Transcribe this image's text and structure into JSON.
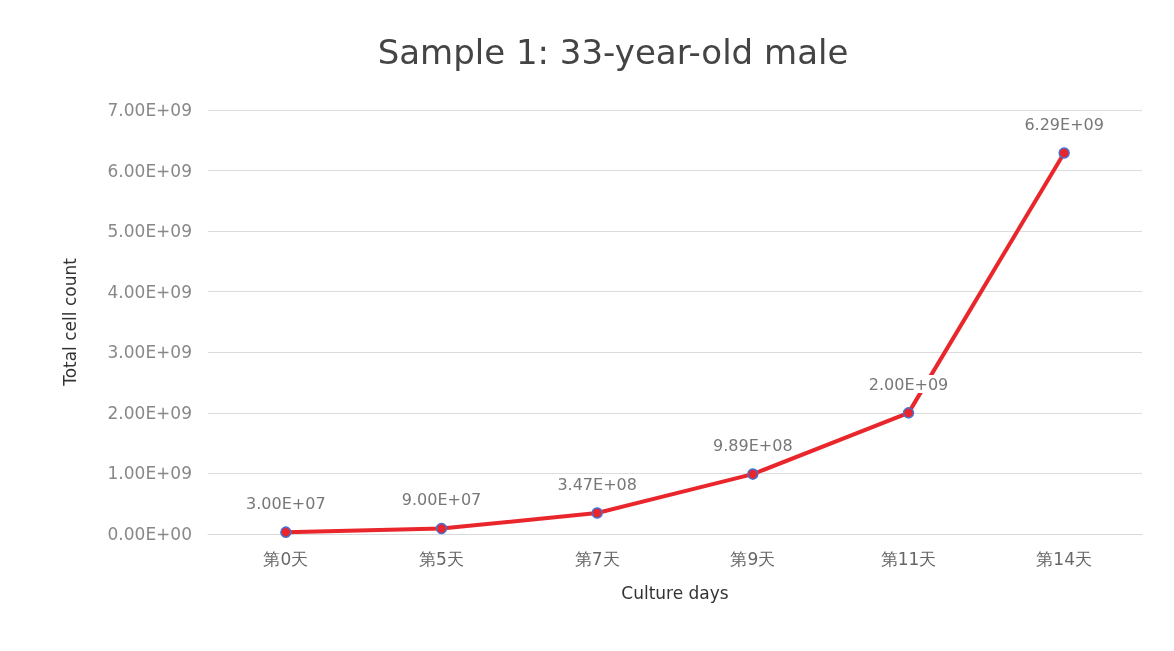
{
  "chart_data": {
    "type": "line",
    "title": "Sample 1: 33-year-old male",
    "xlabel": "Culture days",
    "ylabel": "Total cell count",
    "categories": [
      "第0天",
      "第5天",
      "第7天",
      "第9天",
      "第11天",
      "第14天"
    ],
    "series": [
      {
        "color": "#e8262b",
        "values": [
          30000000,
          90000000,
          347000000,
          989000000,
          2000000000,
          6290000000
        ],
        "value_labels": [
          "3.00E+07",
          "9.00E+07",
          "3.47E+08",
          "9.89E+08",
          "2.00E+09",
          "6.29E+09"
        ]
      }
    ],
    "ylim": [
      0,
      7000000000
    ],
    "yticks": [
      {
        "value": 0,
        "label": "0.00E+00"
      },
      {
        "value": 1000000000,
        "label": "1.00E+09"
      },
      {
        "value": 2000000000,
        "label": "2.00E+09"
      },
      {
        "value": 3000000000,
        "label": "3.00E+09"
      },
      {
        "value": 4000000000,
        "label": "4.00E+09"
      },
      {
        "value": 5000000000,
        "label": "5.00E+09"
      },
      {
        "value": 6000000000,
        "label": "6.00E+09"
      },
      {
        "value": 7000000000,
        "label": "7.00E+09"
      }
    ],
    "grid": "y",
    "marker": "circle",
    "line_style": "solid"
  }
}
